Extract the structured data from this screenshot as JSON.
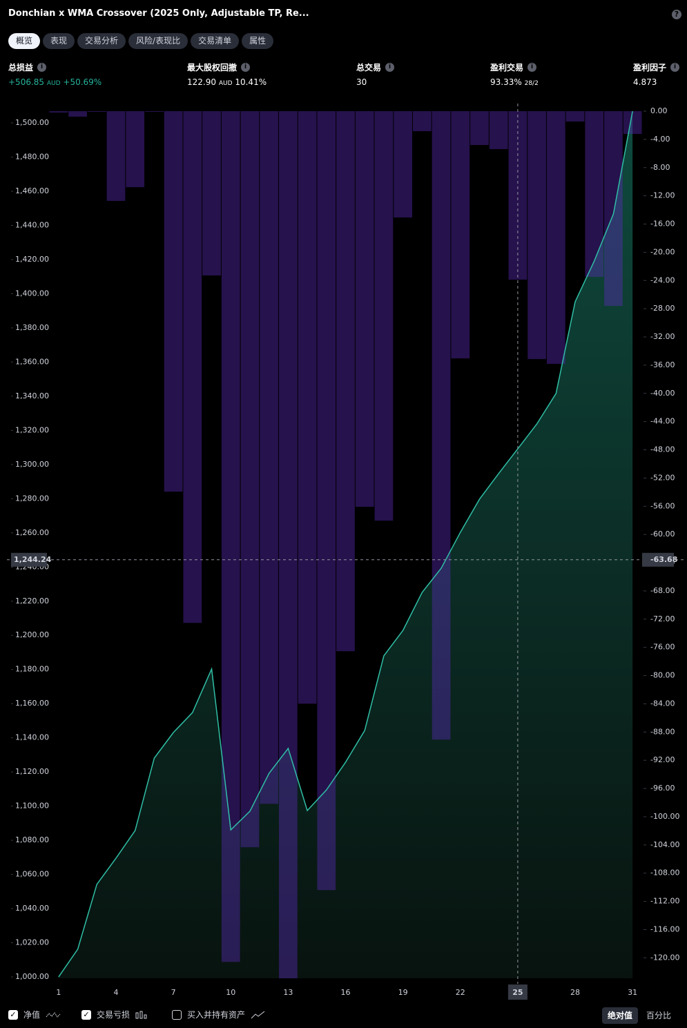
{
  "header": {
    "title": "Donchian x WMA Crossover (2025 Only, Adjustable TP, Re..."
  },
  "tabs": {
    "items": [
      "概览",
      "表现",
      "交易分析",
      "风险/表现比",
      "交易清单",
      "属性"
    ],
    "active": 0
  },
  "metrics": [
    {
      "label": "总损益",
      "value": "+506.85",
      "unit": "AUD",
      "extra": "+50.69%"
    },
    {
      "label": "最大股权回撤",
      "value": "122.90",
      "unit": "AUD",
      "extra": "10.41%"
    },
    {
      "label": "总交易",
      "value": "30"
    },
    {
      "label": "盈利交易",
      "value": "93.33%",
      "sub": "28/2"
    },
    {
      "label": "盈利因子",
      "value": "4.873"
    }
  ],
  "chart_data": {
    "type": "combo",
    "x": [
      1,
      2,
      3,
      4,
      5,
      6,
      7,
      8,
      9,
      10,
      11,
      12,
      13,
      14,
      15,
      16,
      17,
      18,
      19,
      20,
      21,
      22,
      23,
      24,
      25,
      26,
      27,
      28,
      29,
      30,
      31
    ],
    "xlim": [
      0.5,
      31.5
    ],
    "xticks": [
      1,
      4,
      7,
      10,
      13,
      16,
      19,
      22,
      25,
      28,
      31
    ],
    "ylim": [
      999.2,
      1506.9
    ],
    "yticks": [
      {
        "value": 1000,
        "label": "1,000.00"
      },
      {
        "value": 1020,
        "label": "1,020.00"
      },
      {
        "value": 1040,
        "label": "1,040.00"
      },
      {
        "value": 1060,
        "label": "1,060.00"
      },
      {
        "value": 1080,
        "label": "1,080.00"
      },
      {
        "value": 1100,
        "label": "1,100.00"
      },
      {
        "value": 1120,
        "label": "1,120.00"
      },
      {
        "value": 1140,
        "label": "1,140.00"
      },
      {
        "value": 1160,
        "label": "1,160.00"
      },
      {
        "value": 1180,
        "label": "1,180.00"
      },
      {
        "value": 1200,
        "label": "1,200.00"
      },
      {
        "value": 1220,
        "label": "1,220.00"
      },
      {
        "value": 1240,
        "label": "1,240.00"
      },
      {
        "value": 1260,
        "label": "1,260.00"
      },
      {
        "value": 1280,
        "label": "1,280.00"
      },
      {
        "value": 1300,
        "label": "1,300.00"
      },
      {
        "value": 1320,
        "label": "1,320.00"
      },
      {
        "value": 1340,
        "label": "1,340.00"
      },
      {
        "value": 1360,
        "label": "1,360.00"
      },
      {
        "value": 1380,
        "label": "1,380.00"
      },
      {
        "value": 1400,
        "label": "1,400.00"
      },
      {
        "value": 1420,
        "label": "1,420.00"
      },
      {
        "value": 1440,
        "label": "1,440.00"
      },
      {
        "value": 1460,
        "label": "1,460.00"
      },
      {
        "value": 1480,
        "label": "1,480.00"
      },
      {
        "value": 1500,
        "label": "1,500.00"
      }
    ],
    "y2lim": [
      -122.9,
      0
    ],
    "y2ticks": [
      {
        "value": 0,
        "label": "0.00"
      },
      {
        "value": -4,
        "label": "-4.00"
      },
      {
        "value": -8,
        "label": "-8.00"
      },
      {
        "value": -12,
        "label": "-12.00"
      },
      {
        "value": -16,
        "label": "-16.00"
      },
      {
        "value": -20,
        "label": "-20.00"
      },
      {
        "value": -24,
        "label": "-24.00"
      },
      {
        "value": -28,
        "label": "-28.00"
      },
      {
        "value": -32,
        "label": "-32.00"
      },
      {
        "value": -36,
        "label": "-36.00"
      },
      {
        "value": -40,
        "label": "-40.00"
      },
      {
        "value": -44,
        "label": "-44.00"
      },
      {
        "value": -48,
        "label": "-48.00"
      },
      {
        "value": -52,
        "label": "-52.00"
      },
      {
        "value": -56,
        "label": "-56.00"
      },
      {
        "value": -60,
        "label": "-60.00"
      },
      {
        "value": -64,
        "label": "-64.00"
      },
      {
        "value": -68,
        "label": "-68.00"
      },
      {
        "value": -72,
        "label": "-72.00"
      },
      {
        "value": -76,
        "label": "-76.00"
      },
      {
        "value": -80,
        "label": "-80.00"
      },
      {
        "value": -84,
        "label": "-84.00"
      },
      {
        "value": -88,
        "label": "-88.00"
      },
      {
        "value": -92,
        "label": "-92.00"
      },
      {
        "value": -96,
        "label": "-96.00"
      },
      {
        "value": -100,
        "label": "-100.00"
      },
      {
        "value": -104,
        "label": "-104.00"
      },
      {
        "value": -108,
        "label": "-108.00"
      },
      {
        "value": -112,
        "label": "-112.00"
      },
      {
        "value": -116,
        "label": "-116.00"
      },
      {
        "value": -120,
        "label": "-120.00"
      }
    ],
    "series": [
      {
        "name": "净值",
        "type": "line",
        "color": "#2fbfa6",
        "checked": true,
        "values": [
          1000,
          1016.2,
          1054.2,
          1069.5,
          1085.7,
          1128.1,
          1143.1,
          1154.8,
          1180.3,
          1086.1,
          1097.0,
          1119.2,
          1133.8,
          1097.4,
          1109.5,
          1125.7,
          1144.3,
          1188.0,
          1202.9,
          1225.1,
          1239.3,
          1260.3,
          1279.7,
          1294.7,
          1309.2,
          1323.8,
          1341.6,
          1395.3,
          1419.2,
          1446.7,
          1506.85
        ]
      },
      {
        "name": "交易亏损",
        "type": "bar",
        "axis": "y2",
        "color": "#5a2ab8",
        "checked": true,
        "values": [
          -0.2,
          -0.78,
          -0.1,
          -12.72,
          -10.77,
          -0.1,
          -53.93,
          -72.53,
          -23.29,
          -120.58,
          -104.33,
          -98.17,
          -122.9,
          -83.98,
          -110.4,
          -76.54,
          -56.08,
          -58.04,
          -15.07,
          -2.84,
          -89.07,
          -35.04,
          -4.8,
          -5.38,
          -23.88,
          -35.14,
          -35.82,
          -1.47,
          -23.49,
          -27.6,
          -3.23
        ]
      }
    ],
    "crosshair": {
      "x": 25,
      "y": {
        "value": 1244.24,
        "label": "1,244.24"
      },
      "y2": -63.68
    }
  },
  "footer": {
    "buy_hold_label": "买入并持有资产",
    "buy_hold_checked": false,
    "modes": [
      "绝对值",
      "百分比"
    ],
    "active_mode": 0
  }
}
